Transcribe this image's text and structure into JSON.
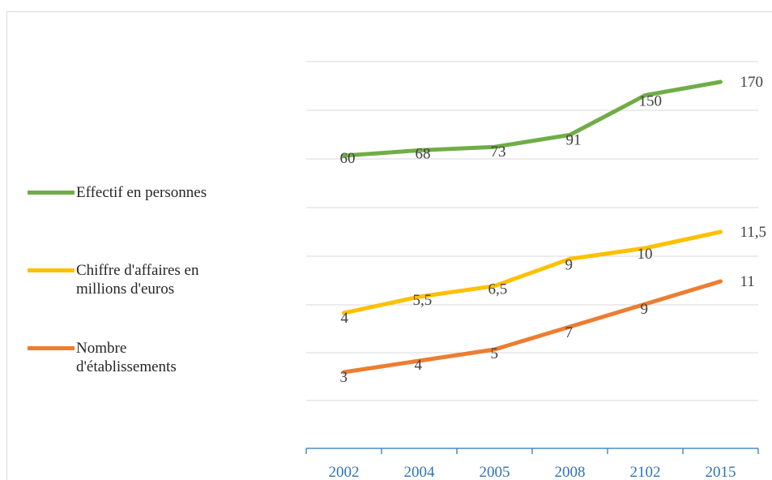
{
  "chart_data": {
    "type": "line",
    "categories": [
      "2002",
      "2004",
      "2005",
      "2008",
      "2102",
      "2015"
    ],
    "series": [
      {
        "name": "Effectif en personnes",
        "color": "#70ad47",
        "values": [
          60,
          68,
          73,
          91,
          150,
          170
        ],
        "labels": [
          "60",
          "68",
          "73",
          "91",
          "150",
          "170"
        ]
      },
      {
        "name": "Chiffre d'affaires en millions d'euros",
        "color": "#ffc000",
        "values": [
          4,
          5.5,
          6.5,
          9,
          10,
          11.5
        ],
        "labels": [
          "4",
          "5,5",
          "6,5",
          "9",
          "10",
          "11,5"
        ]
      },
      {
        "name": "Nombre d'établissements",
        "color": "#ed7d31",
        "values": [
          3,
          4,
          5,
          7,
          9,
          11
        ],
        "labels": [
          "3",
          "4",
          "5",
          "7",
          "9",
          "11"
        ]
      }
    ],
    "grid": true,
    "legend": "left"
  }
}
